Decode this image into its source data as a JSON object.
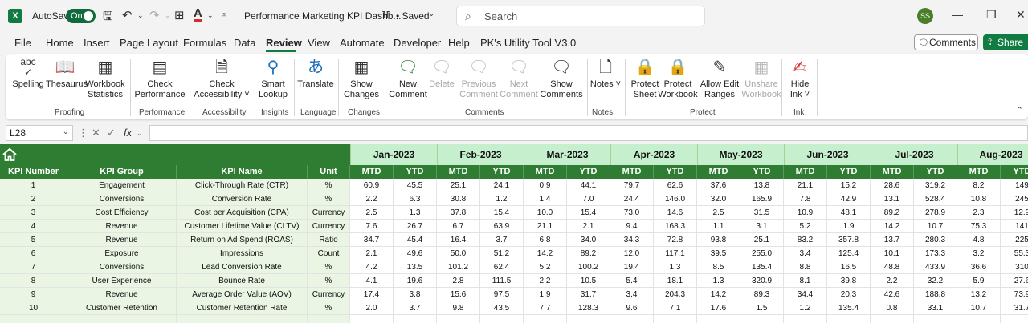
{
  "titlebar": {
    "app_logo": "X",
    "autosave_label": "AutoSave",
    "autosave_state": "On",
    "doc_title": "Performance Marketing KPI Dashb...",
    "saved_label": "• Saved",
    "search_placeholder": "Search",
    "avatar_initials": "SS",
    "icons": [
      "save-icon",
      "undo-icon",
      "redo-icon",
      "table-icon",
      "font-color-icon",
      "customize-icon",
      "share-status-icon",
      "search-icon",
      "minimize-icon",
      "restore-icon",
      "close-icon"
    ]
  },
  "menu": {
    "tabs": [
      "File",
      "Home",
      "Insert",
      "Page Layout",
      "Formulas",
      "Data",
      "Review",
      "View",
      "Automate",
      "Developer",
      "Help",
      "PK's Utility Tool V3.0"
    ],
    "active": "Review",
    "comments_label": "Comments",
    "share_label": "Share"
  },
  "ribbon": {
    "items": [
      {
        "label": "Spelling",
        "icon": "spelling-icon",
        "disabled": false
      },
      {
        "label": "Thesaurus",
        "icon": "thesaurus-icon",
        "disabled": false
      },
      {
        "label": "Workbook Statistics",
        "icon": "workbook-statistics-icon",
        "disabled": false
      },
      {
        "label": "Check Performance",
        "icon": "check-performance-icon",
        "disabled": false
      },
      {
        "label": "Check Accessibility ˅",
        "icon": "check-accessibility-icon",
        "disabled": false
      },
      {
        "label": "Smart Lookup",
        "icon": "smart-lookup-icon",
        "disabled": false
      },
      {
        "label": "Translate",
        "icon": "translate-icon",
        "disabled": false
      },
      {
        "label": "Show Changes",
        "icon": "show-changes-icon",
        "disabled": false
      },
      {
        "label": "New Comment",
        "icon": "new-comment-icon",
        "disabled": false
      },
      {
        "label": "Delete",
        "icon": "delete-comment-icon",
        "disabled": true
      },
      {
        "label": "Previous Comment",
        "icon": "previous-comment-icon",
        "disabled": true
      },
      {
        "label": "Next Comment",
        "icon": "next-comment-icon",
        "disabled": true
      },
      {
        "label": "Show Comments",
        "icon": "show-comments-icon",
        "disabled": false
      },
      {
        "label": "Notes ˅",
        "icon": "notes-icon",
        "disabled": false
      },
      {
        "label": "Protect Sheet",
        "icon": "protect-sheet-icon",
        "disabled": false
      },
      {
        "label": "Protect Workbook",
        "icon": "protect-workbook-icon",
        "disabled": false
      },
      {
        "label": "Allow Edit Ranges",
        "icon": "allow-edit-ranges-icon",
        "disabled": false
      },
      {
        "label": "Unshare Workbook",
        "icon": "unshare-workbook-icon",
        "disabled": true
      },
      {
        "label": "Hide Ink ˅",
        "icon": "hide-ink-icon",
        "disabled": false
      }
    ],
    "groups": [
      "Proofing",
      "Performance",
      "Accessibility",
      "Insights",
      "Language",
      "Changes",
      "Comments",
      "Notes",
      "Protect",
      "Ink"
    ]
  },
  "formula_bar": {
    "name_box": "L28",
    "formula": ""
  },
  "sheet": {
    "headers": [
      "KPI Number",
      "KPI Group",
      "KPI Name",
      "Unit"
    ],
    "months": [
      "Jan-2023",
      "Feb-2023",
      "Mar-2023",
      "Apr-2023",
      "May-2023",
      "Jun-2023",
      "Jul-2023",
      "Aug-2023"
    ],
    "sub_headers": [
      "MTD",
      "YTD"
    ],
    "rows": [
      {
        "num": "1",
        "group": "Engagement",
        "name": "Click-Through Rate (CTR)",
        "unit": "%",
        "vals": [
          "60.9",
          "45.5",
          "25.1",
          "24.1",
          "0.9",
          "44.1",
          "79.7",
          "62.6",
          "37.6",
          "13.8",
          "21.1",
          "15.2",
          "28.6",
          "319.2",
          "8.2",
          "149"
        ]
      },
      {
        "num": "2",
        "group": "Conversions",
        "name": "Conversion Rate",
        "unit": "%",
        "vals": [
          "2.2",
          "6.3",
          "30.8",
          "1.2",
          "1.4",
          "7.0",
          "24.4",
          "146.0",
          "32.0",
          "165.9",
          "7.8",
          "42.9",
          "13.1",
          "528.4",
          "10.8",
          "245"
        ]
      },
      {
        "num": "3",
        "group": "Cost Efficiency",
        "name": "Cost per Acquisition (CPA)",
        "unit": "Currency",
        "vals": [
          "2.5",
          "1.3",
          "37.8",
          "15.4",
          "10.0",
          "15.4",
          "73.0",
          "14.6",
          "2.5",
          "31.5",
          "10.9",
          "48.1",
          "89.2",
          "278.9",
          "2.3",
          "12.9"
        ]
      },
      {
        "num": "4",
        "group": "Revenue",
        "name": "Customer Lifetime Value (CLTV)",
        "unit": "Currency",
        "vals": [
          "7.6",
          "26.7",
          "6.7",
          "63.9",
          "21.1",
          "2.1",
          "9.4",
          "168.3",
          "1.1",
          "3.1",
          "5.2",
          "1.9",
          "14.2",
          "10.7",
          "75.3",
          "141"
        ]
      },
      {
        "num": "5",
        "group": "Revenue",
        "name": "Return on Ad Spend (ROAS)",
        "unit": "Ratio",
        "vals": [
          "34.7",
          "45.4",
          "16.4",
          "3.7",
          "6.8",
          "34.0",
          "34.3",
          "72.8",
          "93.8",
          "25.1",
          "83.2",
          "357.8",
          "13.7",
          "280.3",
          "4.8",
          "225"
        ]
      },
      {
        "num": "6",
        "group": "Exposure",
        "name": "Impressions",
        "unit": "Count",
        "vals": [
          "2.1",
          "49.6",
          "50.0",
          "51.2",
          "14.2",
          "89.2",
          "12.0",
          "117.1",
          "39.5",
          "255.0",
          "3.4",
          "125.4",
          "10.1",
          "173.3",
          "3.2",
          "55.3"
        ]
      },
      {
        "num": "7",
        "group": "Conversions",
        "name": "Lead Conversion Rate",
        "unit": "%",
        "vals": [
          "4.2",
          "13.5",
          "101.2",
          "62.4",
          "5.2",
          "100.2",
          "19.4",
          "1.3",
          "8.5",
          "135.4",
          "8.8",
          "16.5",
          "48.8",
          "433.9",
          "36.6",
          "310"
        ]
      },
      {
        "num": "8",
        "group": "User Experience",
        "name": "Bounce Rate",
        "unit": "%",
        "vals": [
          "4.1",
          "19.6",
          "2.8",
          "111.5",
          "2.2",
          "10.5",
          "5.4",
          "18.1",
          "1.3",
          "320.9",
          "8.1",
          "39.8",
          "2.2",
          "32.2",
          "5.9",
          "27.6"
        ]
      },
      {
        "num": "9",
        "group": "Revenue",
        "name": "Average Order Value (AOV)",
        "unit": "Currency",
        "vals": [
          "17.4",
          "3.8",
          "15.6",
          "97.5",
          "1.9",
          "31.7",
          "3.4",
          "204.3",
          "14.2",
          "89.3",
          "34.4",
          "20.3",
          "42.6",
          "188.8",
          "13.2",
          "73.9"
        ]
      },
      {
        "num": "10",
        "group": "Customer Retention",
        "name": "Customer Retention Rate",
        "unit": "%",
        "vals": [
          "2.0",
          "3.7",
          "9.8",
          "43.5",
          "7.7",
          "128.3",
          "9.6",
          "7.1",
          "17.6",
          "1.5",
          "1.2",
          "135.4",
          "0.8",
          "33.1",
          "10.7",
          "31.7"
        ]
      }
    ]
  },
  "colors": {
    "excel_green": "#107c41",
    "header_green": "#2e7d32",
    "month_header": "#c6efce",
    "left_cells": "#eaf5e4"
  }
}
